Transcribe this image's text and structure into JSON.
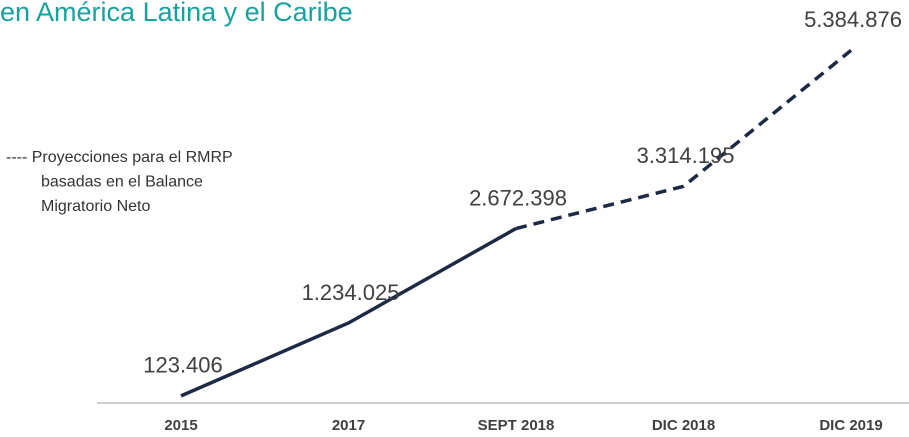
{
  "chart_data": {
    "type": "line",
    "title": "en América Latina y el Caribe",
    "annotation_lines": [
      "---- Proyecciones para el RMRP",
      "basadas en el Balance",
      "Migratorio Neto"
    ],
    "categories": [
      "2015",
      "2017",
      "SEPT 2018",
      "DIC 2018",
      "DIC 2019"
    ],
    "series": [
      {
        "name": null,
        "color": "#1c2a45",
        "values": [
          123406,
          1234025,
          2672398,
          3314195,
          5384876
        ],
        "value_labels": [
          "123.406",
          "1.234.025",
          "2.672.398",
          "3.314.195",
          "5.384.876"
        ],
        "dashed_segments": [
          false,
          false,
          true,
          true
        ]
      }
    ],
    "ylim": [
      0,
      6000000
    ],
    "grid": false
  }
}
